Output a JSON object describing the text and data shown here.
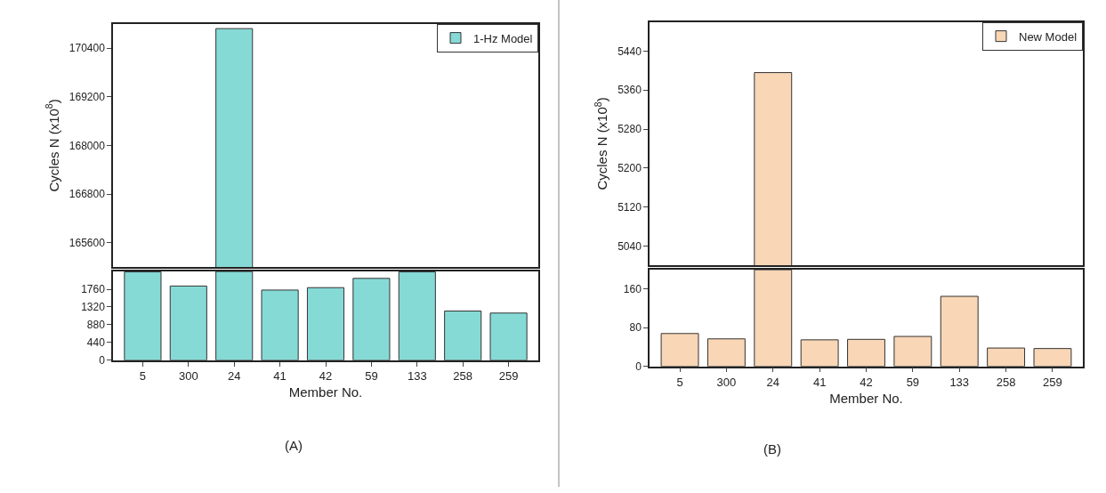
{
  "chart_data": [
    {
      "type": "bar",
      "categories": [
        "5",
        "300",
        "24",
        "41",
        "42",
        "59",
        "133",
        "258",
        "259"
      ],
      "ylabel": "Cycles N (x10$^{8}$)",
      "ylim": [
        165000,
        171000
      ],
      "yticks": [
        165600,
        166800,
        168000,
        169200,
        170400
      ],
      "tick_labels": "y",
      "legend": "top right",
      "series": [
        {
          "name": "1-Hz Model",
          "color": "#86dad6",
          "values": [
            null,
            null,
            170880,
            null,
            null,
            null,
            null,
            null,
            null
          ]
        }
      ]
    },
    {
      "type": "bar",
      "categories": [
        "5",
        "300",
        "24",
        "41",
        "42",
        "59",
        "133",
        "258",
        "259"
      ],
      "xlabel": "Member No.",
      "ylim": [
        0,
        2200
      ],
      "yticks": [
        0,
        440,
        880,
        1320,
        1760
      ],
      "annotations": [
        "(A)"
      ],
      "series": [
        {
          "color": "#86dad6",
          "values": [
            2190,
            1840,
            2200,
            1740,
            1800,
            2030,
            2190,
            1220,
            1170
          ]
        }
      ]
    },
    {
      "type": "bar",
      "categories": [
        "5",
        "300",
        "24",
        "41",
        "42",
        "59",
        "133",
        "258",
        "259"
      ],
      "ylabel": "Cycles N (x10$^{8}$)",
      "ylim": [
        5000,
        5500
      ],
      "yticks": [
        5040,
        5120,
        5200,
        5280,
        5360,
        5440
      ],
      "tick_labels": "y",
      "legend": "top right",
      "series": [
        {
          "name": "New Model",
          "color": "#f8d6b6",
          "values": [
            null,
            null,
            5396,
            null,
            null,
            null,
            null,
            null,
            null
          ]
        }
      ]
    },
    {
      "type": "bar",
      "categories": [
        "5",
        "300",
        "24",
        "41",
        "42",
        "59",
        "133",
        "258",
        "259"
      ],
      "xlabel": "Member No.",
      "ylim": [
        0,
        200
      ],
      "yticks": [
        0,
        80,
        160
      ],
      "annotations": [
        "(B)"
      ],
      "series": [
        {
          "color": "#f8d6b6",
          "values": [
            68,
            57,
            200,
            55,
            56,
            62,
            145,
            38,
            37
          ]
        }
      ]
    }
  ]
}
